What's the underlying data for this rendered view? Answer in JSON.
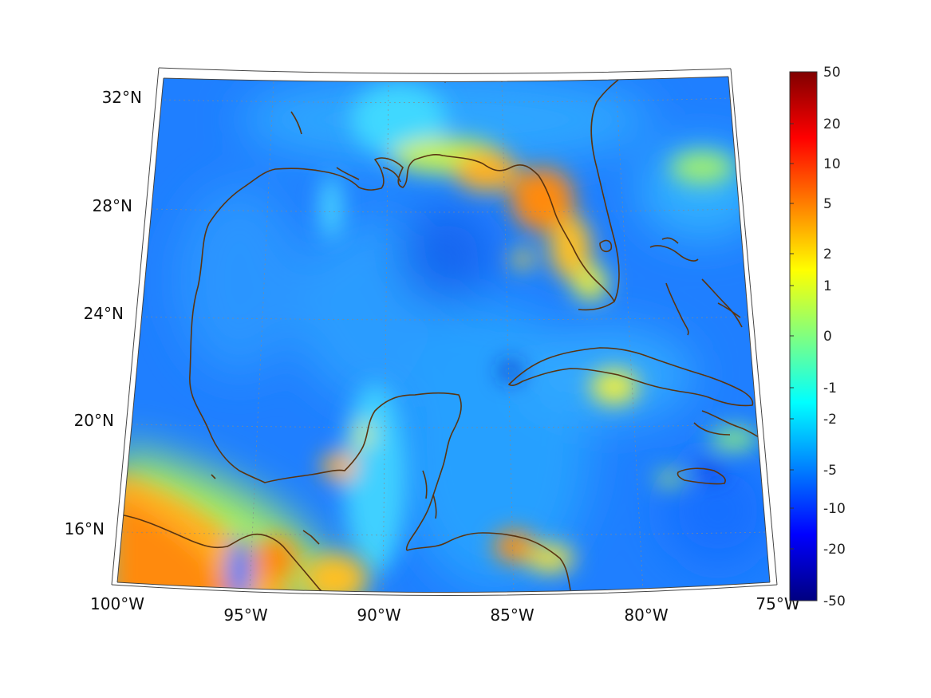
{
  "map": {
    "lon_labels": [
      "100°W",
      "95°W",
      "90°W",
      "85°W",
      "80°W",
      "75°W"
    ],
    "lat_labels": [
      "32°N",
      "28°N",
      "24°N",
      "20°N",
      "16°N"
    ],
    "background_color": "#1f7fff",
    "grid": true,
    "coastline_color": "#5a3410"
  },
  "colorbar": {
    "tick_labels": [
      "50",
      "20",
      "10",
      "5",
      "2",
      "1",
      "0",
      "-1",
      "-2",
      "-5",
      "-10",
      "-20",
      "-50"
    ],
    "colormap": [
      "#800000",
      "#ff0000",
      "#ff7f00",
      "#ffff00",
      "#80ff80",
      "#00ffff",
      "#0080ff",
      "#0000ff",
      "#000080"
    ]
  }
}
